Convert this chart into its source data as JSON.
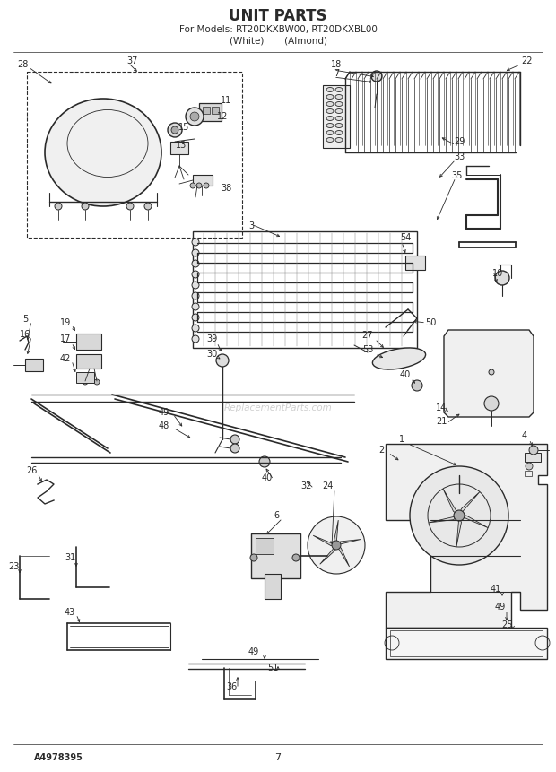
{
  "title": "UNIT PARTS",
  "subtitle1": "For Models: RT20DKXBW00, RT20DKXBL00",
  "subtitle2": "(White)       (Almond)",
  "bg_color": "#ffffff",
  "line_color": "#2a2a2a",
  "footer_left": "A4978395",
  "footer_center": "7",
  "fig_w": 6.2,
  "fig_h": 8.61,
  "dpi": 100
}
